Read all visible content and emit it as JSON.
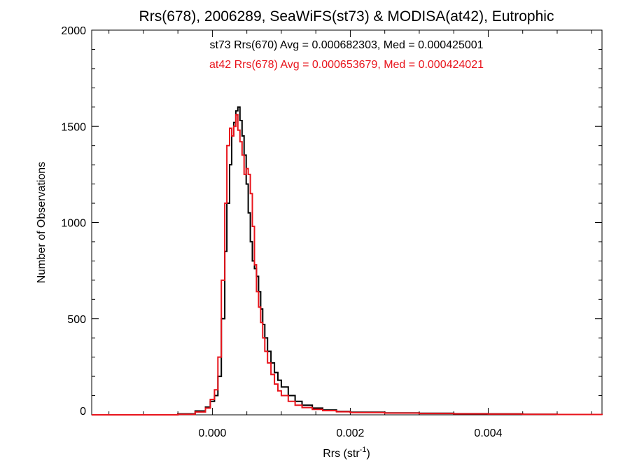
{
  "chart_data": {
    "type": "histogram-step",
    "title": "Rrs(678), 2006289, SeaWiFS(st73) & MODISA(at42), Eutrophic",
    "xlabel_base": "Rrs (str",
    "xlabel_sup": "-1",
    "xlabel_close": ")",
    "ylabel": "Number of Observations",
    "xlim": [
      -0.00175,
      0.00565
    ],
    "ylim": [
      0,
      2000
    ],
    "x_ticks": [
      0.0,
      0.002,
      0.004
    ],
    "x_tick_labels": [
      "0.000",
      "0.002",
      "0.004"
    ],
    "y_ticks": [
      0,
      500,
      1000,
      1500,
      2000
    ],
    "y_tick_labels": [
      "0",
      "500",
      "1000",
      "1500",
      "2000"
    ],
    "grid": false,
    "annotations": [
      {
        "text": "st73 Rrs(670) Avg = 0.000682303, Med = 0.000425001",
        "color": "#000000"
      },
      {
        "text": "at42 Rrs(678) Avg = 0.000653679, Med = 0.000424021",
        "color": "#e8141c"
      }
    ],
    "series": [
      {
        "name": "st73 Rrs(670)",
        "color": "#000000",
        "x": [
          -0.00175,
          -0.0005,
          -0.00025,
          -0.0001,
          -3e-05,
          3e-05,
          8e-05,
          0.00013,
          0.00018,
          0.00021,
          0.00025,
          0.00028,
          0.00031,
          0.00034,
          0.00037,
          0.0004,
          0.00043,
          0.00046,
          0.00049,
          0.00052,
          0.00055,
          0.00058,
          0.00061,
          0.00064,
          0.00067,
          0.0007,
          0.00073,
          0.00076,
          0.0008,
          0.00085,
          0.0009,
          0.00095,
          0.001,
          0.0011,
          0.0012,
          0.0013,
          0.00145,
          0.0016,
          0.0018,
          0.002,
          0.0025,
          0.003,
          0.0035,
          0.004,
          0.0045,
          0.005,
          0.00565
        ],
        "y": [
          0,
          5,
          20,
          40,
          70,
          100,
          200,
          500,
          850,
          1100,
          1300,
          1450,
          1520,
          1580,
          1600,
          1530,
          1450,
          1350,
          1200,
          1050,
          900,
          800,
          760,
          720,
          640,
          550,
          470,
          400,
          330,
          270,
          220,
          180,
          145,
          100,
          70,
          50,
          35,
          25,
          18,
          14,
          10,
          8,
          6,
          5,
          3,
          2,
          0
        ]
      },
      {
        "name": "at42 Rrs(678)",
        "color": "#e8141c",
        "x": [
          -0.00175,
          -0.0005,
          -0.00025,
          -0.0001,
          -3e-05,
          3e-05,
          8e-05,
          0.00013,
          0.00018,
          0.00021,
          0.00025,
          0.00028,
          0.00031,
          0.00034,
          0.00037,
          0.0004,
          0.00043,
          0.00046,
          0.00049,
          0.00052,
          0.00055,
          0.00058,
          0.00061,
          0.00064,
          0.00067,
          0.0007,
          0.00073,
          0.00076,
          0.0008,
          0.00085,
          0.0009,
          0.00095,
          0.001,
          0.0011,
          0.0012,
          0.0013,
          0.00145,
          0.0016,
          0.0018,
          0.002,
          0.0025,
          0.003,
          0.0035,
          0.004,
          0.0045,
          0.005,
          0.00565
        ],
        "y": [
          0,
          3,
          15,
          35,
          80,
          130,
          300,
          700,
          1100,
          1400,
          1490,
          1450,
          1500,
          1560,
          1480,
          1420,
          1350,
          1250,
          1280,
          1250,
          1150,
          980,
          780,
          640,
          560,
          480,
          400,
          330,
          270,
          210,
          160,
          125,
          100,
          70,
          50,
          38,
          28,
          22,
          16,
          12,
          9,
          7,
          5,
          4,
          3,
          2,
          0
        ]
      }
    ]
  }
}
